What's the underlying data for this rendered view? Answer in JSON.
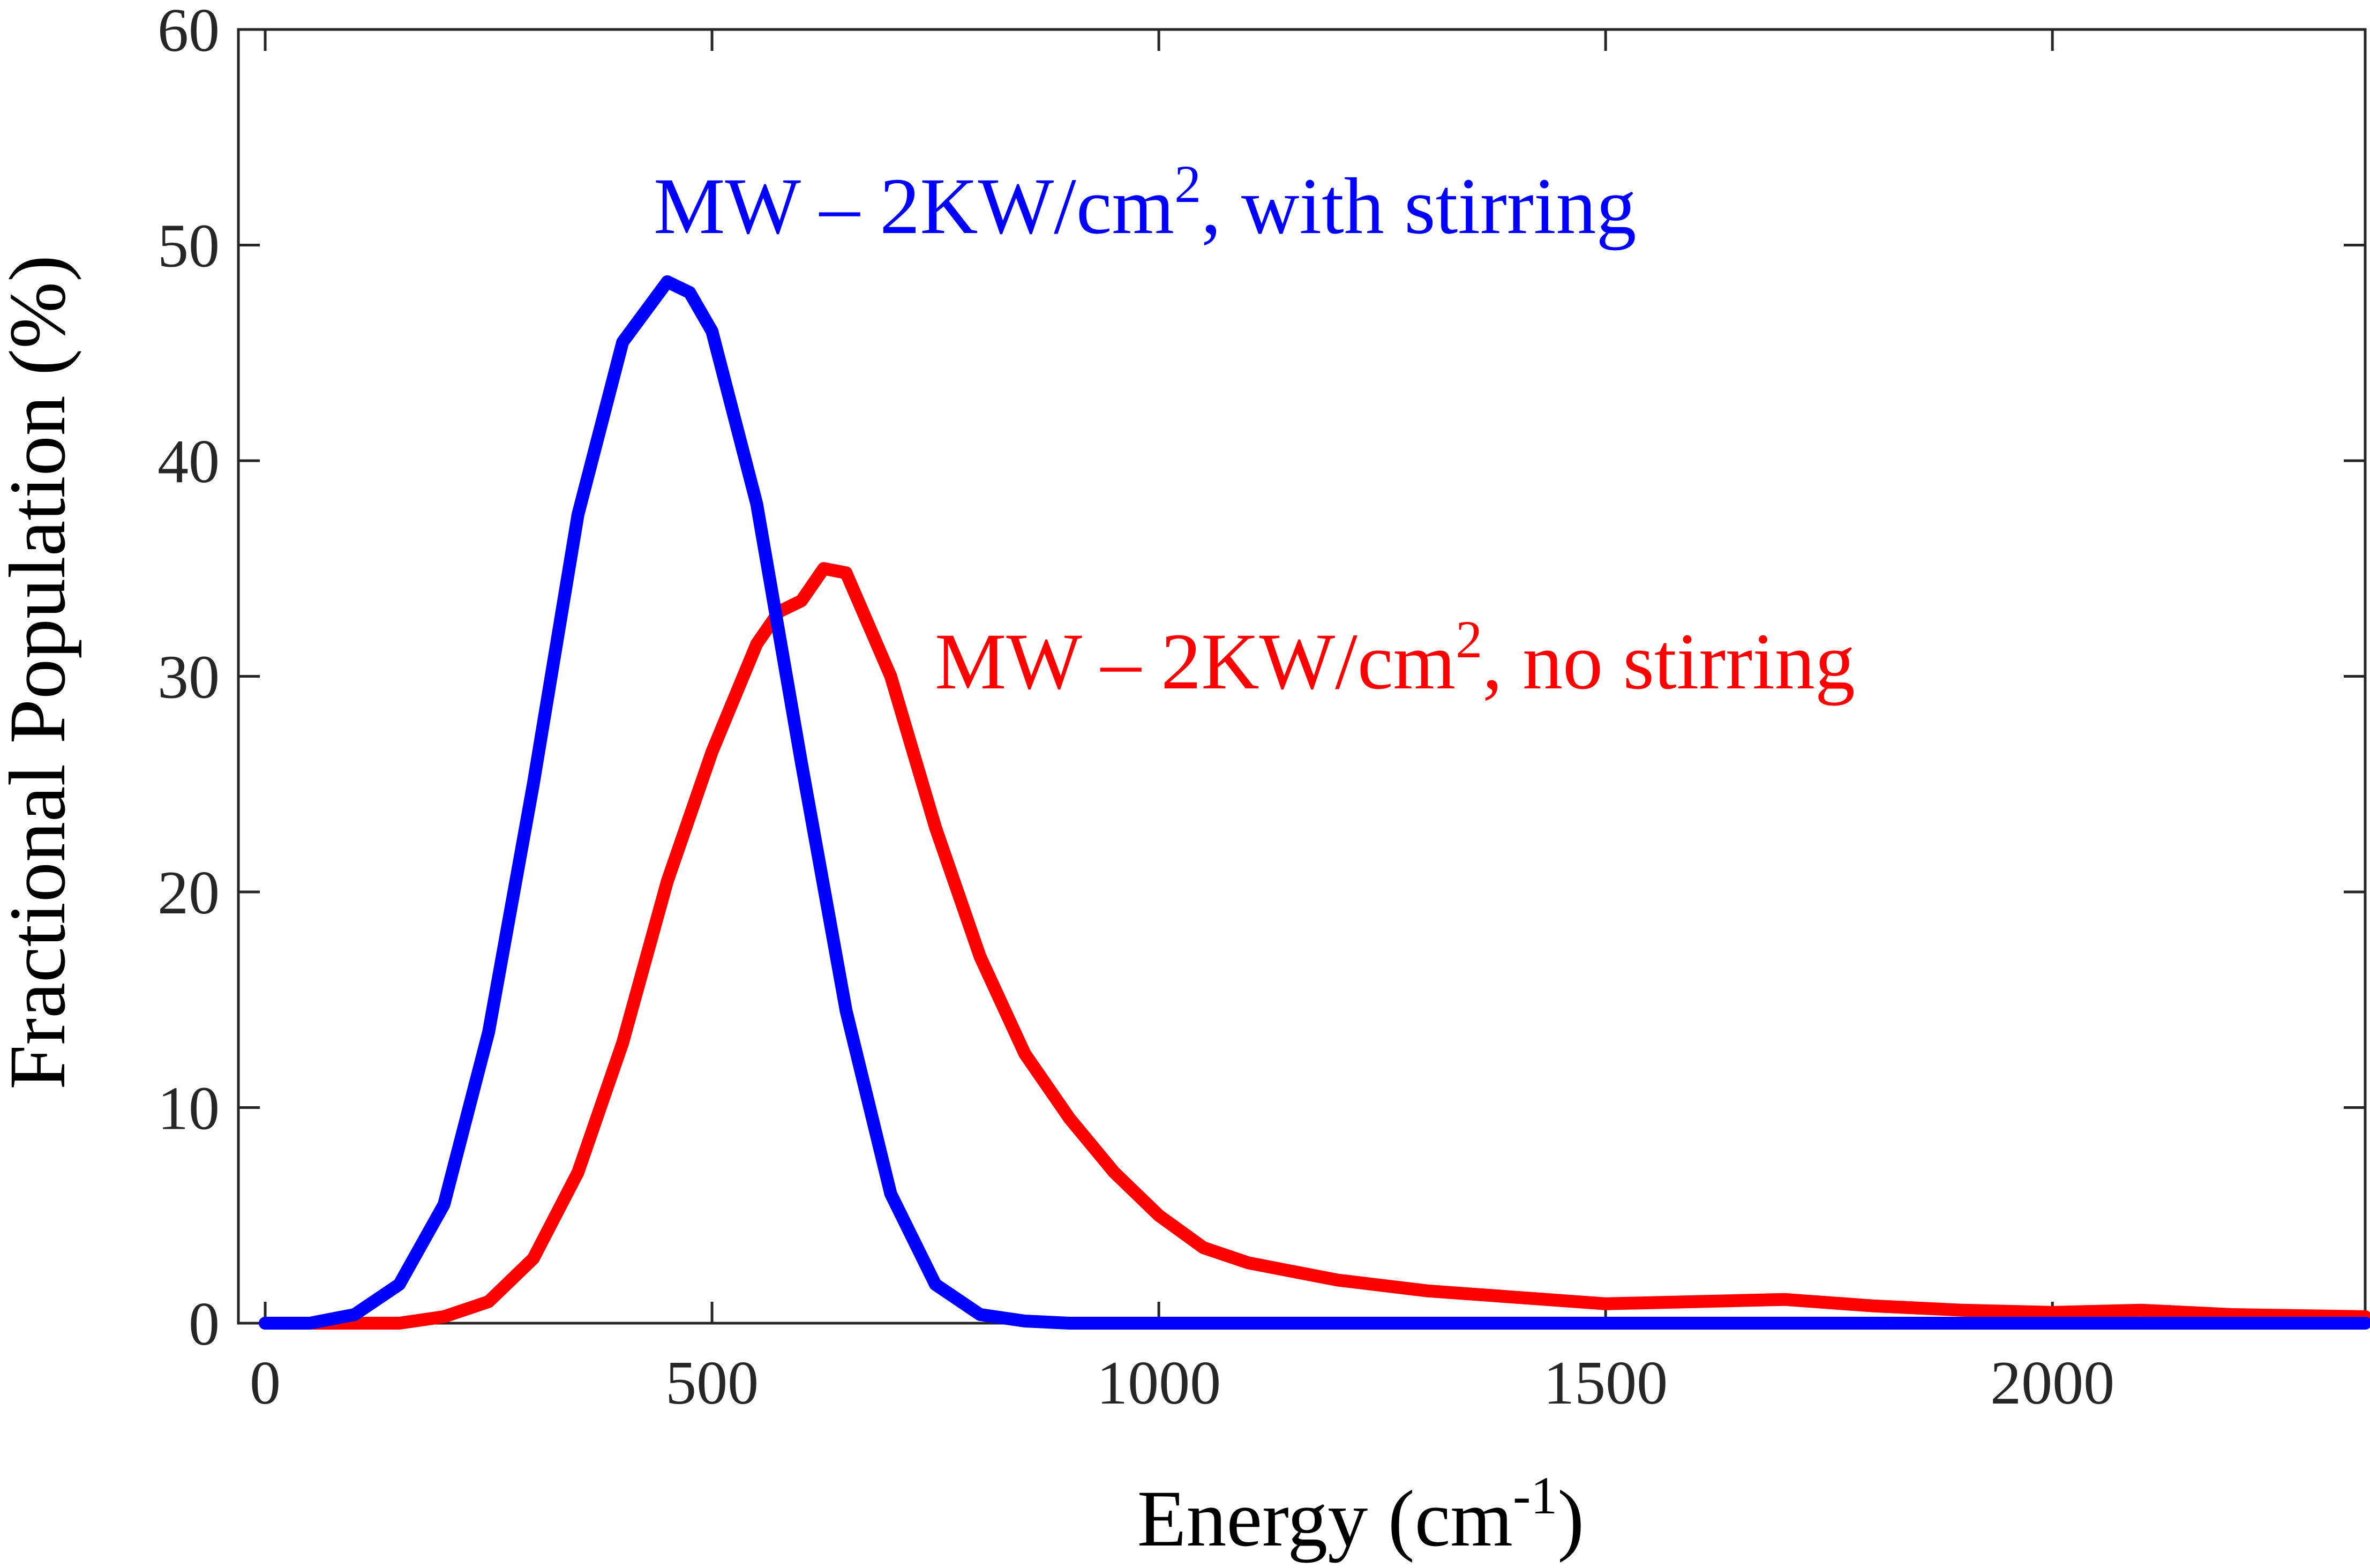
{
  "chart_data": {
    "type": "line",
    "title": "",
    "xlabel": "Energy (cm",
    "xlabel_sup": "-1",
    "xlabel_end": ")",
    "ylabel": "Fractional Population (%)",
    "xlim": [
      -30,
      2350
    ],
    "ylim": [
      0,
      60
    ],
    "xticks": [
      0,
      500,
      1000,
      1500,
      2000
    ],
    "yticks": [
      0,
      10,
      20,
      30,
      40,
      50,
      60
    ],
    "grid": false,
    "annotations": [
      {
        "text": "MW – 2KW/cm",
        "sup": "2",
        "tail": ", with stirring",
        "color": "#0000ff",
        "series": "with_stirring"
      },
      {
        "text": "MW – 2KW/cm",
        "sup": "2",
        "tail": ", no stirring",
        "color": "#ff0000",
        "series": "no_stirring"
      }
    ],
    "series": [
      {
        "name": "MW – 2KW/cm2, with stirring",
        "key": "with_stirring",
        "color": "#0000ff",
        "x": [
          0,
          50,
          100,
          150,
          200,
          250,
          300,
          350,
          400,
          450,
          475,
          500,
          550,
          600,
          650,
          700,
          750,
          800,
          850,
          900,
          1000,
          1500,
          2000,
          2350
        ],
        "y": [
          0,
          0,
          0.4,
          1.8,
          5.5,
          13.5,
          25,
          37.5,
          45.5,
          48.3,
          47.8,
          46,
          38,
          26,
          14.5,
          6,
          1.8,
          0.4,
          0.1,
          0,
          0,
          0,
          0,
          0
        ]
      },
      {
        "name": "MW – 2KW/cm2, no stirring",
        "key": "no_stirring",
        "color": "#ff0000",
        "x": [
          0,
          50,
          100,
          150,
          200,
          250,
          300,
          350,
          400,
          450,
          500,
          550,
          575,
          600,
          625,
          650,
          700,
          750,
          800,
          850,
          900,
          950,
          1000,
          1050,
          1100,
          1200,
          1300,
          1400,
          1500,
          1600,
          1700,
          1800,
          1900,
          2000,
          2100,
          2200,
          2350
        ],
        "y": [
          0,
          0,
          0,
          0,
          0.3,
          1,
          3,
          7,
          13,
          20.5,
          26.5,
          31.5,
          33,
          33.5,
          35,
          34.8,
          30,
          23,
          17,
          12.5,
          9.5,
          7,
          5,
          3.5,
          2.8,
          2,
          1.5,
          1.2,
          0.9,
          1,
          1.1,
          0.8,
          0.6,
          0.5,
          0.6,
          0.4,
          0.3
        ]
      }
    ]
  }
}
